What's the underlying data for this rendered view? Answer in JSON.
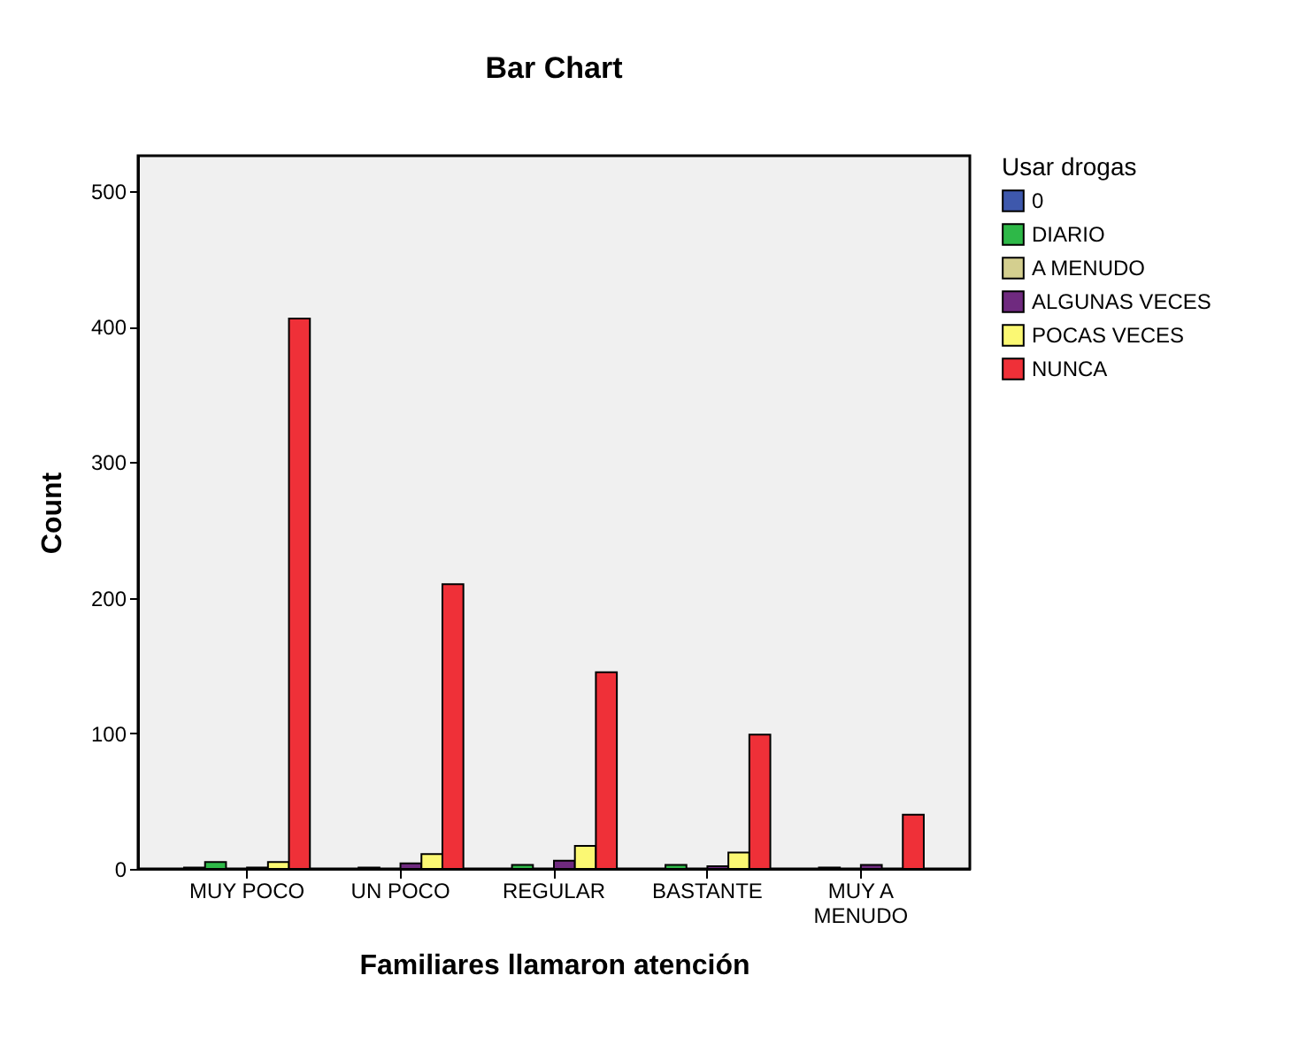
{
  "chart_data": {
    "type": "bar",
    "title": "Bar Chart",
    "xlabel": "Familiares llamaron atención",
    "ylabel": "Count",
    "legend_title": "Usar drogas",
    "categories": [
      "MUY POCO",
      "UN POCO",
      "REGULAR",
      "BASTANTE",
      "MUY A MENUDO"
    ],
    "series": [
      {
        "name": "0",
        "color": "#3e58ac",
        "values": [
          1,
          0,
          0,
          0,
          0
        ]
      },
      {
        "name": "DIARIO",
        "color": "#2eb848",
        "values": [
          5,
          1,
          3,
          3,
          1
        ]
      },
      {
        "name": "A MENUDO",
        "color": "#d4cf8f",
        "values": [
          null,
          null,
          null,
          null,
          0
        ]
      },
      {
        "name": "ALGUNAS VECES",
        "color": "#6f2a7f",
        "values": [
          1,
          4,
          6,
          2,
          3
        ]
      },
      {
        "name": "POCAS VECES",
        "color": "#fbf873",
        "values": [
          5,
          11,
          17,
          12,
          null
        ]
      },
      {
        "name": "NUNCA",
        "color": "#ef3038",
        "values": [
          406,
          210,
          145,
          99,
          40
        ]
      }
    ],
    "ylim": [
      0,
      526
    ],
    "yticks": [
      0,
      100,
      200,
      300,
      400,
      500
    ],
    "grid": false,
    "legend": "top right"
  }
}
